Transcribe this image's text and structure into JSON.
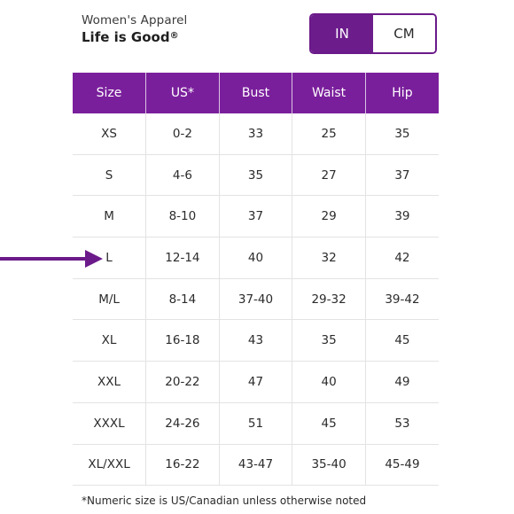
{
  "header": {
    "subtitle": "Women's Apparel",
    "brand": "Life is Good",
    "brand_mark": "®"
  },
  "unit_toggle": {
    "options": [
      "IN",
      "CM"
    ],
    "selected": "IN"
  },
  "table": {
    "columns": [
      "Size",
      "US*",
      "Bust",
      "Waist",
      "Hip"
    ],
    "rows": [
      [
        "XS",
        "0-2",
        "33",
        "25",
        "35"
      ],
      [
        "S",
        "4-6",
        "35",
        "27",
        "37"
      ],
      [
        "M",
        "8-10",
        "37",
        "29",
        "39"
      ],
      [
        "L",
        "12-14",
        "40",
        "32",
        "42"
      ],
      [
        "M/L",
        "8-14",
        "37-40",
        "29-32",
        "39-42"
      ],
      [
        "XL",
        "16-18",
        "43",
        "35",
        "45"
      ],
      [
        "XXL",
        "20-22",
        "47",
        "40",
        "49"
      ],
      [
        "XXXL",
        "24-26",
        "51",
        "45",
        "53"
      ],
      [
        "XL/XXL",
        "16-22",
        "43-47",
        "35-40",
        "45-49"
      ]
    ],
    "highlighted_row": 3
  },
  "footnote": "*Numeric size is US/Canadian unless otherwise noted",
  "colors": {
    "accent": "#7a1f9c",
    "toggle_active": "#6d1c8c",
    "arrow": "#6b1a8a"
  },
  "icons": {
    "pointer": "right-arrow-icon"
  }
}
